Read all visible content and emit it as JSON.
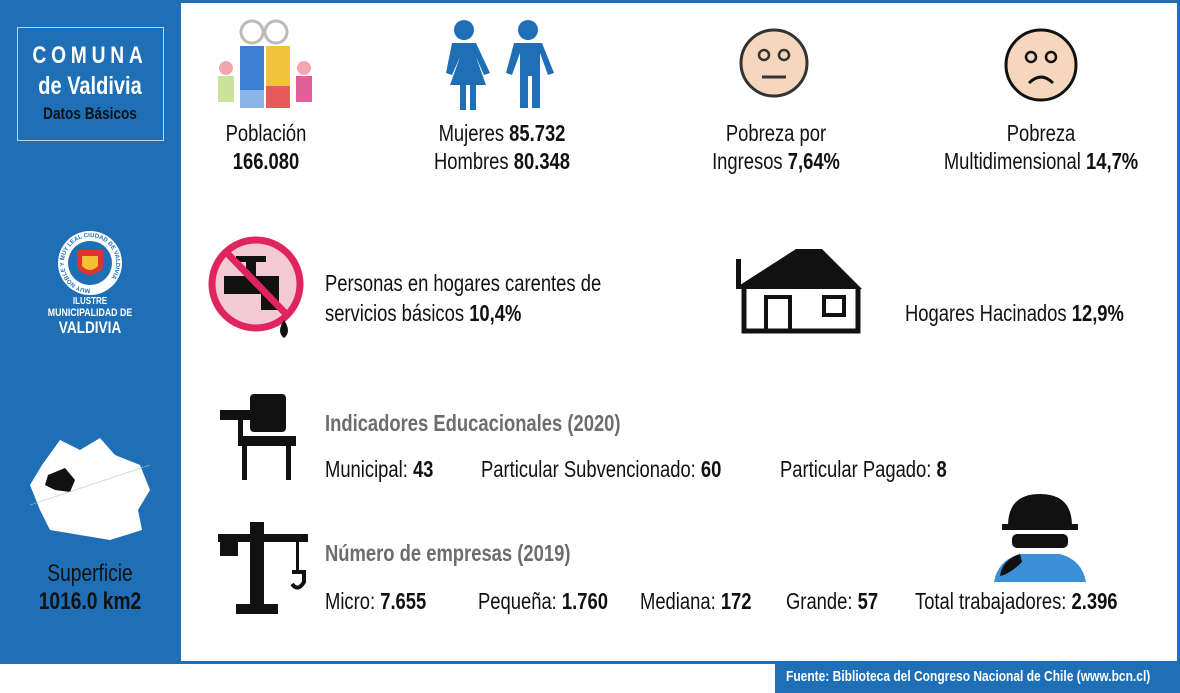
{
  "sidebar": {
    "title": "COMUNA",
    "subtitle": "de Valdivia",
    "tag": "Datos Básicos",
    "logo_ring": "MUY NOBLE Y MUY LEAL CIUDAD DE VALDIVIA",
    "logo_lines": [
      "ILUSTRE",
      "MUNICIPALIDAD DE",
      "VALDIVIA"
    ],
    "surface_label": "Superficie",
    "surface_value": "1016.0 km2"
  },
  "poblacion": {
    "label": "Población",
    "value": "166.080"
  },
  "genero": {
    "women_label": "Mujeres",
    "women_value": "85.732",
    "men_label": "Hombres",
    "men_value": "80.348"
  },
  "pobreza_ingresos": {
    "line1": "Pobreza por",
    "line2": "Ingresos",
    "value": "7,64%"
  },
  "pobreza_multi": {
    "line1": "Pobreza",
    "line2": "Multidimensional",
    "value": "14,7%"
  },
  "servicios": {
    "line1": "Personas en hogares carentes de",
    "line2": "servicios básicos",
    "value": "10,4%"
  },
  "hacinados": {
    "label": "Hogares Hacinados",
    "value": "12,9%"
  },
  "educacion": {
    "title": "Indicadores Educacionales (2020)",
    "items": [
      {
        "label": "Municipal:",
        "value": "43"
      },
      {
        "label": "Particular Subvencionado:",
        "value": "60"
      },
      {
        "label": "Particular Pagado:",
        "value": "8"
      }
    ]
  },
  "empresas": {
    "title": "Número de empresas (2019)",
    "items": [
      {
        "label": "Micro:",
        "value": "7.655"
      },
      {
        "label": "Pequeña:",
        "value": "1.760"
      },
      {
        "label": "Mediana:",
        "value": "172"
      },
      {
        "label": "Grande:",
        "value": "57"
      },
      {
        "label": "Total trabajadores:",
        "value": "2.396"
      }
    ]
  },
  "footer": {
    "source": "Fuente: Biblioteca del Congreso Nacional de Chile (www.bcn.cl)"
  }
}
